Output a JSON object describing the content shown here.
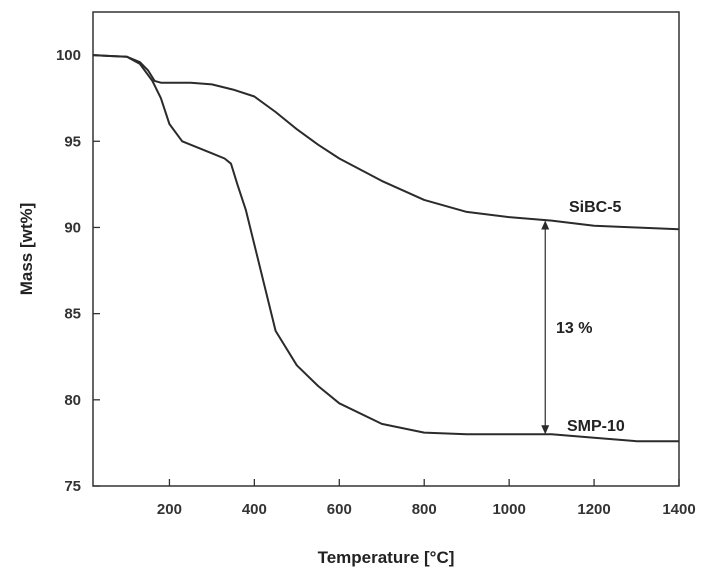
{
  "chart_data": {
    "type": "line",
    "xlabel": "Temperature [°C]",
    "ylabel": "Mass [wt%]",
    "xlim": [
      20,
      1400
    ],
    "ylim": [
      75,
      102.5
    ],
    "x_ticks": [
      200,
      400,
      600,
      800,
      1000,
      1200,
      1400
    ],
    "y_ticks": [
      75,
      80,
      85,
      90,
      95,
      100
    ],
    "grid": false,
    "series": [
      {
        "name": "SiBC-5",
        "x": [
          20,
          60,
          100,
          130,
          150,
          165,
          180,
          200,
          250,
          300,
          350,
          400,
          450,
          500,
          550,
          600,
          700,
          800,
          900,
          1000,
          1100,
          1200,
          1300,
          1400
        ],
        "values": [
          100.0,
          99.95,
          99.9,
          99.6,
          99.1,
          98.5,
          98.4,
          98.4,
          98.4,
          98.3,
          98.0,
          97.6,
          96.7,
          95.7,
          94.8,
          94.0,
          92.7,
          91.6,
          90.9,
          90.6,
          90.4,
          90.1,
          90.0,
          89.9
        ]
      },
      {
        "name": "SMP-10",
        "x": [
          20,
          60,
          100,
          130,
          160,
          180,
          200,
          230,
          260,
          300,
          330,
          345,
          360,
          380,
          400,
          420,
          450,
          500,
          550,
          600,
          700,
          800,
          900,
          1000,
          1100,
          1200,
          1300,
          1400
        ],
        "values": [
          100.0,
          99.95,
          99.9,
          99.5,
          98.5,
          97.5,
          96.0,
          95.0,
          94.7,
          94.3,
          94.0,
          93.7,
          92.5,
          91.0,
          89.0,
          87.0,
          84.0,
          82.0,
          80.8,
          79.8,
          78.6,
          78.1,
          78.0,
          78.0,
          78.0,
          77.8,
          77.6,
          77.6
        ]
      }
    ],
    "annotations": [
      "SiBC-5",
      "SMP-10",
      "13 %"
    ],
    "difference_marker": {
      "x": 1085,
      "y_top": 90.4,
      "y_bottom": 78.0
    }
  }
}
